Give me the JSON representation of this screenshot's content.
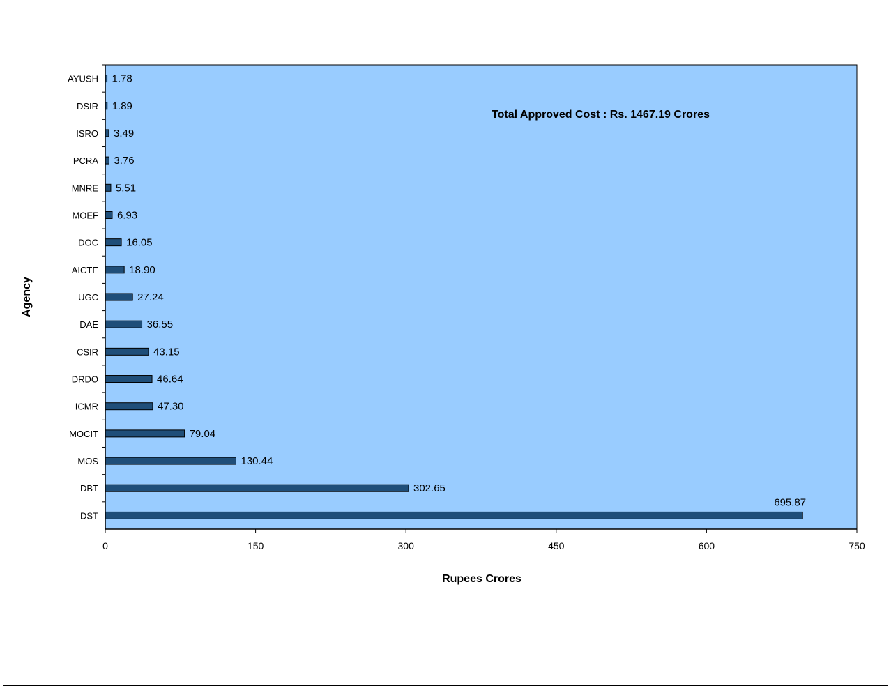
{
  "chart_data": {
    "type": "bar",
    "orientation": "horizontal",
    "categories": [
      "AYUSH",
      "DSIR",
      "ISRO",
      "PCRA",
      "MNRE",
      "MOEF",
      "DOC",
      "AICTE",
      "UGC",
      "DAE",
      "CSIR",
      "DRDO",
      "ICMR",
      "MOCIT",
      "MOS",
      "DBT",
      "DST"
    ],
    "values": [
      1.78,
      1.89,
      3.49,
      3.76,
      5.51,
      6.93,
      16.05,
      18.9,
      27.24,
      36.55,
      43.15,
      46.64,
      47.3,
      79.04,
      130.44,
      302.65,
      695.87
    ],
    "value_labels": [
      "1.78",
      "1.89",
      "3.49",
      "3.76",
      "5.51",
      "6.93",
      "16.05",
      "18.90",
      "27.24",
      "36.55",
      "43.15",
      "46.64",
      "47.30",
      "79.04",
      "130.44",
      "302.65",
      "695.87"
    ],
    "xlabel": "Rupees Crores",
    "ylabel": "Agency",
    "xlim": [
      0,
      750
    ],
    "xticks": [
      0,
      150,
      300,
      450,
      600,
      750
    ],
    "annotation": "Total Approved Cost : Rs. 1467.19 Crores",
    "grid": false,
    "legend": "none"
  },
  "colors": {
    "plot_background": "#99ccff",
    "bar_fill": "#1f4e79",
    "bar_outline": "#000000"
  }
}
